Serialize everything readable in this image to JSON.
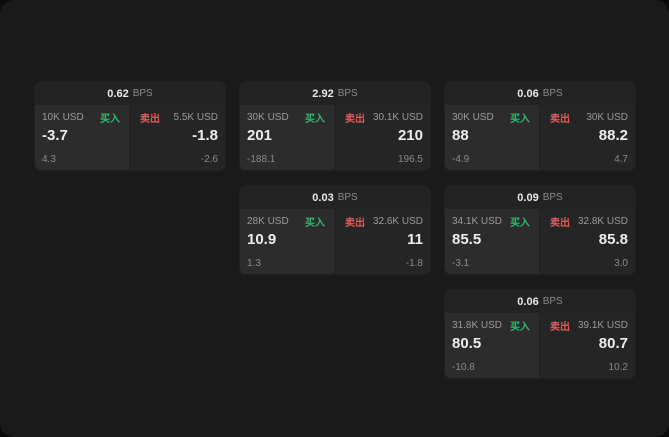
{
  "labels": {
    "buy": "买入",
    "sell": "卖出",
    "bps_unit": "BPS"
  },
  "colors": {
    "buy": "#2ebd70",
    "sell": "#e05b5b",
    "panel_bg": "#1a1a1a",
    "card_bg": "#232323"
  },
  "cards": [
    {
      "bps": "0.62",
      "left": {
        "size": "10K USD",
        "price": "-3.7",
        "sub": "4.3"
      },
      "right": {
        "size": "5.5K USD",
        "price": "-1.8",
        "sub": "-2.6"
      }
    },
    {
      "bps": "2.92",
      "left": {
        "size": "30K USD",
        "price": "201",
        "sub": "-188.1"
      },
      "right": {
        "size": "30.1K USD",
        "price": "210",
        "sub": "196.5"
      }
    },
    {
      "bps": "0.06",
      "left": {
        "size": "30K USD",
        "price": "88",
        "sub": "-4.9"
      },
      "right": {
        "size": "30K USD",
        "price": "88.2",
        "sub": "4.7"
      }
    },
    {
      "bps": "0.03",
      "left": {
        "size": "28K USD",
        "price": "10.9",
        "sub": "1.3"
      },
      "right": {
        "size": "32.6K USD",
        "price": "11",
        "sub": "-1.8"
      }
    },
    {
      "bps": "0.09",
      "left": {
        "size": "34.1K USD",
        "price": "85.5",
        "sub": "-3.1"
      },
      "right": {
        "size": "32.8K USD",
        "price": "85.8",
        "sub": "3.0"
      }
    },
    {
      "bps": "0.06",
      "left": {
        "size": "31.8K USD",
        "price": "80.5",
        "sub": "-10.8"
      },
      "right": {
        "size": "39.1K USD",
        "price": "80.7",
        "sub": "10.2"
      }
    }
  ]
}
